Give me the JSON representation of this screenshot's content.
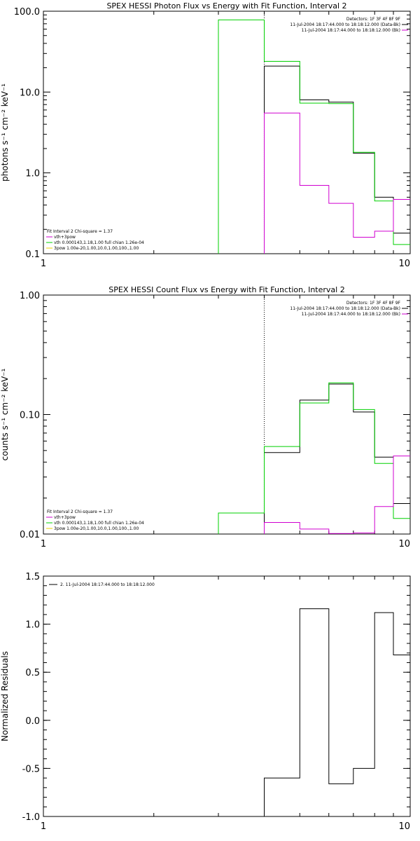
{
  "colors": {
    "data": "#000000",
    "model": "#00d000",
    "bkg": "#d000d0",
    "pow": "#e8d000",
    "sep": "#000000"
  },
  "chart_data": [
    {
      "type": "line",
      "title": "SPEX HESSI Photon Flux vs Energy with Fit Function, Interval 2",
      "ylabel": "photons s⁻¹ cm⁻² keV⁻¹",
      "xlabel": "",
      "xscale": "log",
      "yscale": "log",
      "xlim": [
        1,
        10
      ],
      "ylim": [
        0.1,
        100
      ],
      "xticks": [
        {
          "v": 1,
          "label": "1"
        },
        {
          "v": 10,
          "label": "10"
        }
      ],
      "yticks": [
        {
          "v": 0.1,
          "label": "0.1"
        },
        {
          "v": 1,
          "label": "1.0"
        },
        {
          "v": 10,
          "label": "10.0"
        },
        {
          "v": 100,
          "label": "100.0"
        }
      ],
      "vline": 4,
      "topright_text": [
        "Detectors: 1F 3F 4F 8F 9F",
        "11-Jul-2004 18:17:44.000 to 18:18:12.000 (Data-Bk)",
        "11-Jul-2004 18:17:44.000 to 18:18:12.000 (Bk)"
      ],
      "topright_colors": [
        "data",
        "data",
        "bkg"
      ],
      "fit_text": [
        "Fit Interval 2   Chi-square = 1.37",
        "vth+3pow",
        "vth 0.000143,1.18,1.00  full chian 1.26e-04",
        "3pow 1.00e-20,1.00,10.0,1.00,100.,1.00"
      ],
      "fit_colors": [
        "",
        "bkg",
        "model",
        "pow"
      ],
      "series": [
        {
          "name": "Data-Bk",
          "color": "data",
          "edges": [
            4,
            5,
            6,
            7,
            8,
            9,
            10
          ],
          "values": [
            21,
            8,
            7.5,
            1.75,
            0.5,
            0.18
          ]
        },
        {
          "name": "Model",
          "color": "model",
          "edges": [
            3,
            4,
            5,
            6,
            7,
            8,
            9,
            10
          ],
          "values": [
            78,
            24,
            7.3,
            7.2,
            1.8,
            0.45,
            0.13
          ]
        },
        {
          "name": "Bk",
          "color": "bkg",
          "edges": [
            4,
            5,
            6,
            7,
            8,
            9,
            10
          ],
          "values": [
            5.5,
            0.7,
            0.42,
            0.16,
            0.19,
            0.47
          ]
        }
      ]
    },
    {
      "type": "line",
      "title": "SPEX HESSI Count Flux vs Energy with Fit Function, Interval 2",
      "ylabel": "counts s⁻¹ cm⁻² keV⁻¹",
      "xlabel": "",
      "xscale": "log",
      "yscale": "log",
      "xlim": [
        1,
        10
      ],
      "ylim": [
        0.01,
        1
      ],
      "xticks": [
        {
          "v": 1,
          "label": "1"
        },
        {
          "v": 10,
          "label": "10"
        }
      ],
      "yticks": [
        {
          "v": 0.01,
          "label": "0.01"
        },
        {
          "v": 0.1,
          "label": "0.10"
        },
        {
          "v": 1,
          "label": "1.00"
        }
      ],
      "vline": 4,
      "topright_text": [
        "Detectors: 1F 3F 4F 8F 9F",
        "11-Jul-2004 18:17:44.000 to 18:18:12.000 (Data-Bk)",
        "11-Jul-2004 18:17:44.000 to 18:18:12.000 (Bk)"
      ],
      "topright_colors": [
        "data",
        "data",
        "bkg"
      ],
      "fit_text": [
        "Fit Interval 2   Chi-square = 1.37",
        "vth+3pow",
        "vth 0.000143,1.18,1.00  full chian 1.26e-04",
        "3pow 1.00e-20,1.00,10.0,1.00,100.,1.00"
      ],
      "fit_colors": [
        "",
        "bkg",
        "model",
        "pow"
      ],
      "series": [
        {
          "name": "Data-Bk",
          "color": "data",
          "edges": [
            4,
            5,
            6,
            7,
            8,
            9,
            10
          ],
          "values": [
            0.048,
            0.132,
            0.18,
            0.105,
            0.044,
            0.018
          ]
        },
        {
          "name": "Model",
          "color": "model",
          "edges": [
            3,
            4,
            5,
            6,
            7,
            8,
            9,
            10
          ],
          "values": [
            0.015,
            0.054,
            0.125,
            0.184,
            0.11,
            0.039,
            0.0135
          ]
        },
        {
          "name": "Bk",
          "color": "bkg",
          "edges": [
            4,
            5,
            6,
            7,
            8,
            9,
            10
          ],
          "values": [
            0.0125,
            0.011,
            0.0101,
            0.0102,
            0.017,
            0.045
          ]
        }
      ]
    },
    {
      "type": "line",
      "title": "",
      "ylabel": "Normalized Residuals",
      "xlabel": "",
      "xscale": "log",
      "yscale": "linear",
      "xlim": [
        1,
        10
      ],
      "ylim": [
        -1,
        1.5
      ],
      "xticks": [
        {
          "v": 1,
          "label": "1"
        },
        {
          "v": 10,
          "label": "10"
        }
      ],
      "yticks": [
        {
          "v": -1,
          "label": "-1.0"
        },
        {
          "v": -0.5,
          "label": "-0.5"
        },
        {
          "v": 0,
          "label": "0.0"
        },
        {
          "v": 0.5,
          "label": "0.5"
        },
        {
          "v": 1,
          "label": "1.0"
        },
        {
          "v": 1.5,
          "label": "1.5"
        }
      ],
      "legend_text": "2. 11-Jul-2004 18:17:44.000 to 18:18:12.000",
      "series": [
        {
          "name": "2. 11-Jul-2004 18:17:44.000 to 18:18:12.000",
          "color": "data",
          "edges": [
            4,
            5,
            6,
            7,
            8,
            9,
            10
          ],
          "values": [
            -0.6,
            1.16,
            -0.66,
            -0.5,
            1.12,
            0.68
          ],
          "start_from": -1
        }
      ]
    }
  ]
}
